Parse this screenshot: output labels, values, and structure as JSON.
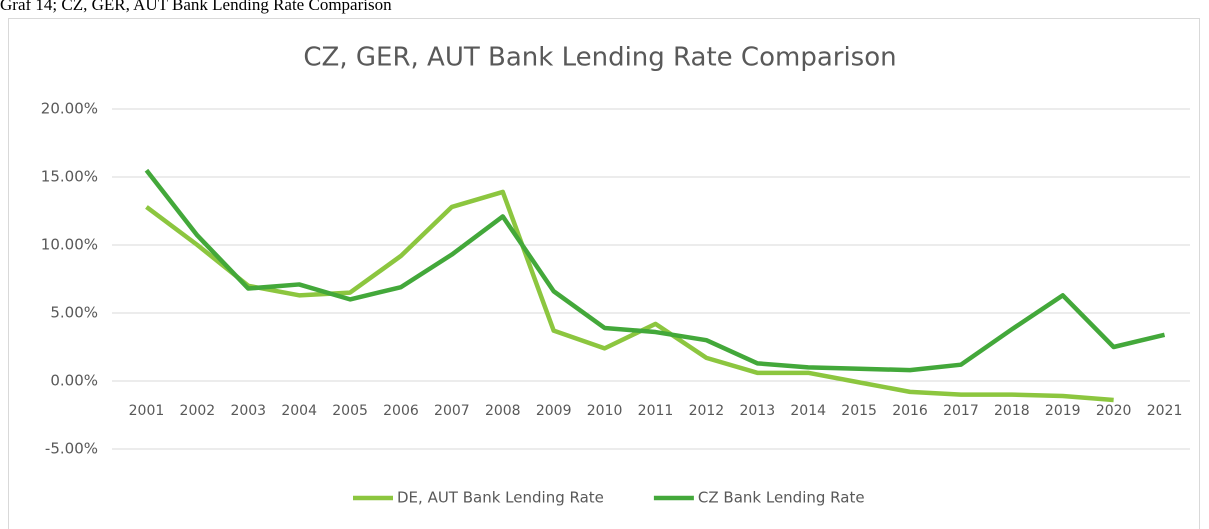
{
  "caption": "Graf 14; CZ, GER, AUT Bank Lending Rate Comparison",
  "chart_data": {
    "type": "line",
    "title": "CZ, GER, AUT Bank Lending Rate Comparison",
    "categories": [
      "2001",
      "2002",
      "2003",
      "2004",
      "2005",
      "2006",
      "2007",
      "2008",
      "2009",
      "2010",
      "2011",
      "2012",
      "2013",
      "2014",
      "2015",
      "2016",
      "2017",
      "2018",
      "2019",
      "2020",
      "2021"
    ],
    "series": [
      {
        "name": "DE, AUT Bank Lending Rate",
        "color": "#8cc63f",
        "values": [
          12.8,
          10.0,
          7.0,
          6.3,
          6.5,
          9.2,
          12.8,
          13.9,
          3.7,
          2.4,
          4.2,
          1.7,
          0.6,
          0.6,
          -0.1,
          -0.8,
          -1.0,
          -1.0,
          -1.1,
          -1.4,
          null
        ]
      },
      {
        "name": "CZ Bank Lending Rate",
        "color": "#43a83a",
        "values": [
          15.5,
          10.7,
          6.8,
          7.1,
          6.0,
          6.9,
          9.3,
          12.1,
          6.6,
          3.9,
          3.6,
          3.0,
          1.3,
          1.0,
          0.9,
          0.8,
          1.2,
          3.8,
          6.3,
          2.5,
          3.4
        ]
      }
    ],
    "ylim": [
      -5,
      20
    ],
    "yticks": [
      {
        "value": -5,
        "label": "-5.00%"
      },
      {
        "value": 0,
        "label": "0.00%"
      },
      {
        "value": 5,
        "label": "5.00%"
      },
      {
        "value": 10,
        "label": "10.00%"
      },
      {
        "value": 15,
        "label": "15.00%"
      },
      {
        "value": 20,
        "label": "20.00%"
      }
    ],
    "grid": true,
    "legend": "bottom"
  }
}
